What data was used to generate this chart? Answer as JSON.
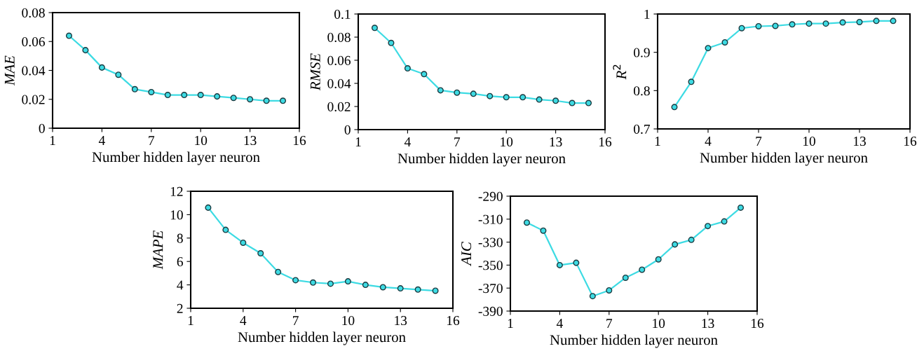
{
  "chart_data": [
    {
      "type": "line",
      "xlabel": "Number hidden layer neuron",
      "ylabel": "MAE",
      "x": [
        2,
        3,
        4,
        5,
        6,
        7,
        8,
        9,
        10,
        11,
        12,
        13,
        14,
        15
      ],
      "xlim": [
        1,
        16
      ],
      "xticks": [
        1,
        4,
        7,
        10,
        13,
        16
      ],
      "ylim": [
        0,
        0.08
      ],
      "yticks": [
        0,
        0.02,
        0.04,
        0.06,
        0.08
      ],
      "marker": "circle",
      "grid": false,
      "legend": false,
      "series": [
        {
          "color": "#3ddbe3",
          "values": [
            0.064,
            0.054,
            0.042,
            0.037,
            0.027,
            0.025,
            0.023,
            0.023,
            0.023,
            0.022,
            0.021,
            0.02,
            0.019,
            0.019
          ]
        }
      ]
    },
    {
      "type": "line",
      "xlabel": "Number hidden layer neuron",
      "ylabel": "RMSE",
      "x": [
        2,
        3,
        4,
        5,
        6,
        7,
        8,
        9,
        10,
        11,
        12,
        13,
        14,
        15
      ],
      "xlim": [
        1,
        16
      ],
      "xticks": [
        1,
        4,
        7,
        10,
        13,
        16
      ],
      "ylim": [
        0,
        0.1
      ],
      "yticks": [
        0,
        0.02,
        0.04,
        0.06,
        0.08,
        0.1
      ],
      "marker": "circle",
      "grid": false,
      "legend": false,
      "series": [
        {
          "color": "#3ddbe3",
          "values": [
            0.088,
            0.075,
            0.053,
            0.048,
            0.034,
            0.032,
            0.031,
            0.029,
            0.028,
            0.028,
            0.026,
            0.025,
            0.023,
            0.023
          ]
        }
      ]
    },
    {
      "type": "line",
      "xlabel": "Number hidden layer neuron",
      "ylabel": "R$^{2}$",
      "x": [
        2,
        3,
        4,
        5,
        6,
        7,
        8,
        9,
        10,
        11,
        12,
        13,
        14,
        15
      ],
      "xlim": [
        1,
        16
      ],
      "xticks": [
        1,
        4,
        7,
        10,
        13,
        16
      ],
      "ylim": [
        0.7,
        1
      ],
      "yticks": [
        0.7,
        0.8,
        0.9,
        1
      ],
      "marker": "circle",
      "grid": false,
      "legend": false,
      "series": [
        {
          "color": "#3ddbe3",
          "values": [
            0.757,
            0.823,
            0.911,
            0.926,
            0.963,
            0.968,
            0.969,
            0.973,
            0.975,
            0.975,
            0.978,
            0.979,
            0.982,
            0.982
          ]
        }
      ]
    },
    {
      "type": "line",
      "xlabel": "Number hidden layer neuron",
      "ylabel": "MAPE",
      "x": [
        2,
        3,
        4,
        5,
        6,
        7,
        8,
        9,
        10,
        11,
        12,
        13,
        14,
        15
      ],
      "xlim": [
        1,
        16
      ],
      "xticks": [
        1,
        4,
        7,
        10,
        13,
        16
      ],
      "ylim": [
        2,
        12
      ],
      "yticks": [
        2,
        4,
        6,
        8,
        10,
        12
      ],
      "marker": "circle",
      "grid": false,
      "legend": false,
      "series": [
        {
          "color": "#3ddbe3",
          "values": [
            10.6,
            8.7,
            7.6,
            6.7,
            5.1,
            4.4,
            4.2,
            4.1,
            4.3,
            4.0,
            3.8,
            3.7,
            3.6,
            3.5
          ]
        }
      ]
    },
    {
      "type": "line",
      "xlabel": "Number hidden layer neuron",
      "ylabel": "AIC",
      "x": [
        2,
        3,
        4,
        5,
        6,
        7,
        8,
        9,
        10,
        11,
        12,
        13,
        14,
        15
      ],
      "xlim": [
        1,
        16
      ],
      "xticks": [
        1,
        4,
        7,
        10,
        13,
        16
      ],
      "ylim": [
        -390,
        -290
      ],
      "yticks": [
        {
          "value": -390,
          "label": "-390"
        },
        {
          "value": -370,
          "label": "-370"
        },
        {
          "value": -350,
          "label": "-350"
        },
        {
          "value": -330,
          "label": "-330"
        },
        {
          "value": -310,
          "label": "-310"
        },
        {
          "value": -290,
          "label": "-290"
        }
      ],
      "marker": "circle",
      "grid": false,
      "legend": false,
      "series": [
        {
          "color": "#3ddbe3",
          "values": [
            -313,
            -320,
            -350,
            -348,
            -377,
            -372,
            -361,
            -354,
            -345,
            -332,
            -328,
            -316,
            -312,
            -300
          ]
        }
      ]
    }
  ]
}
